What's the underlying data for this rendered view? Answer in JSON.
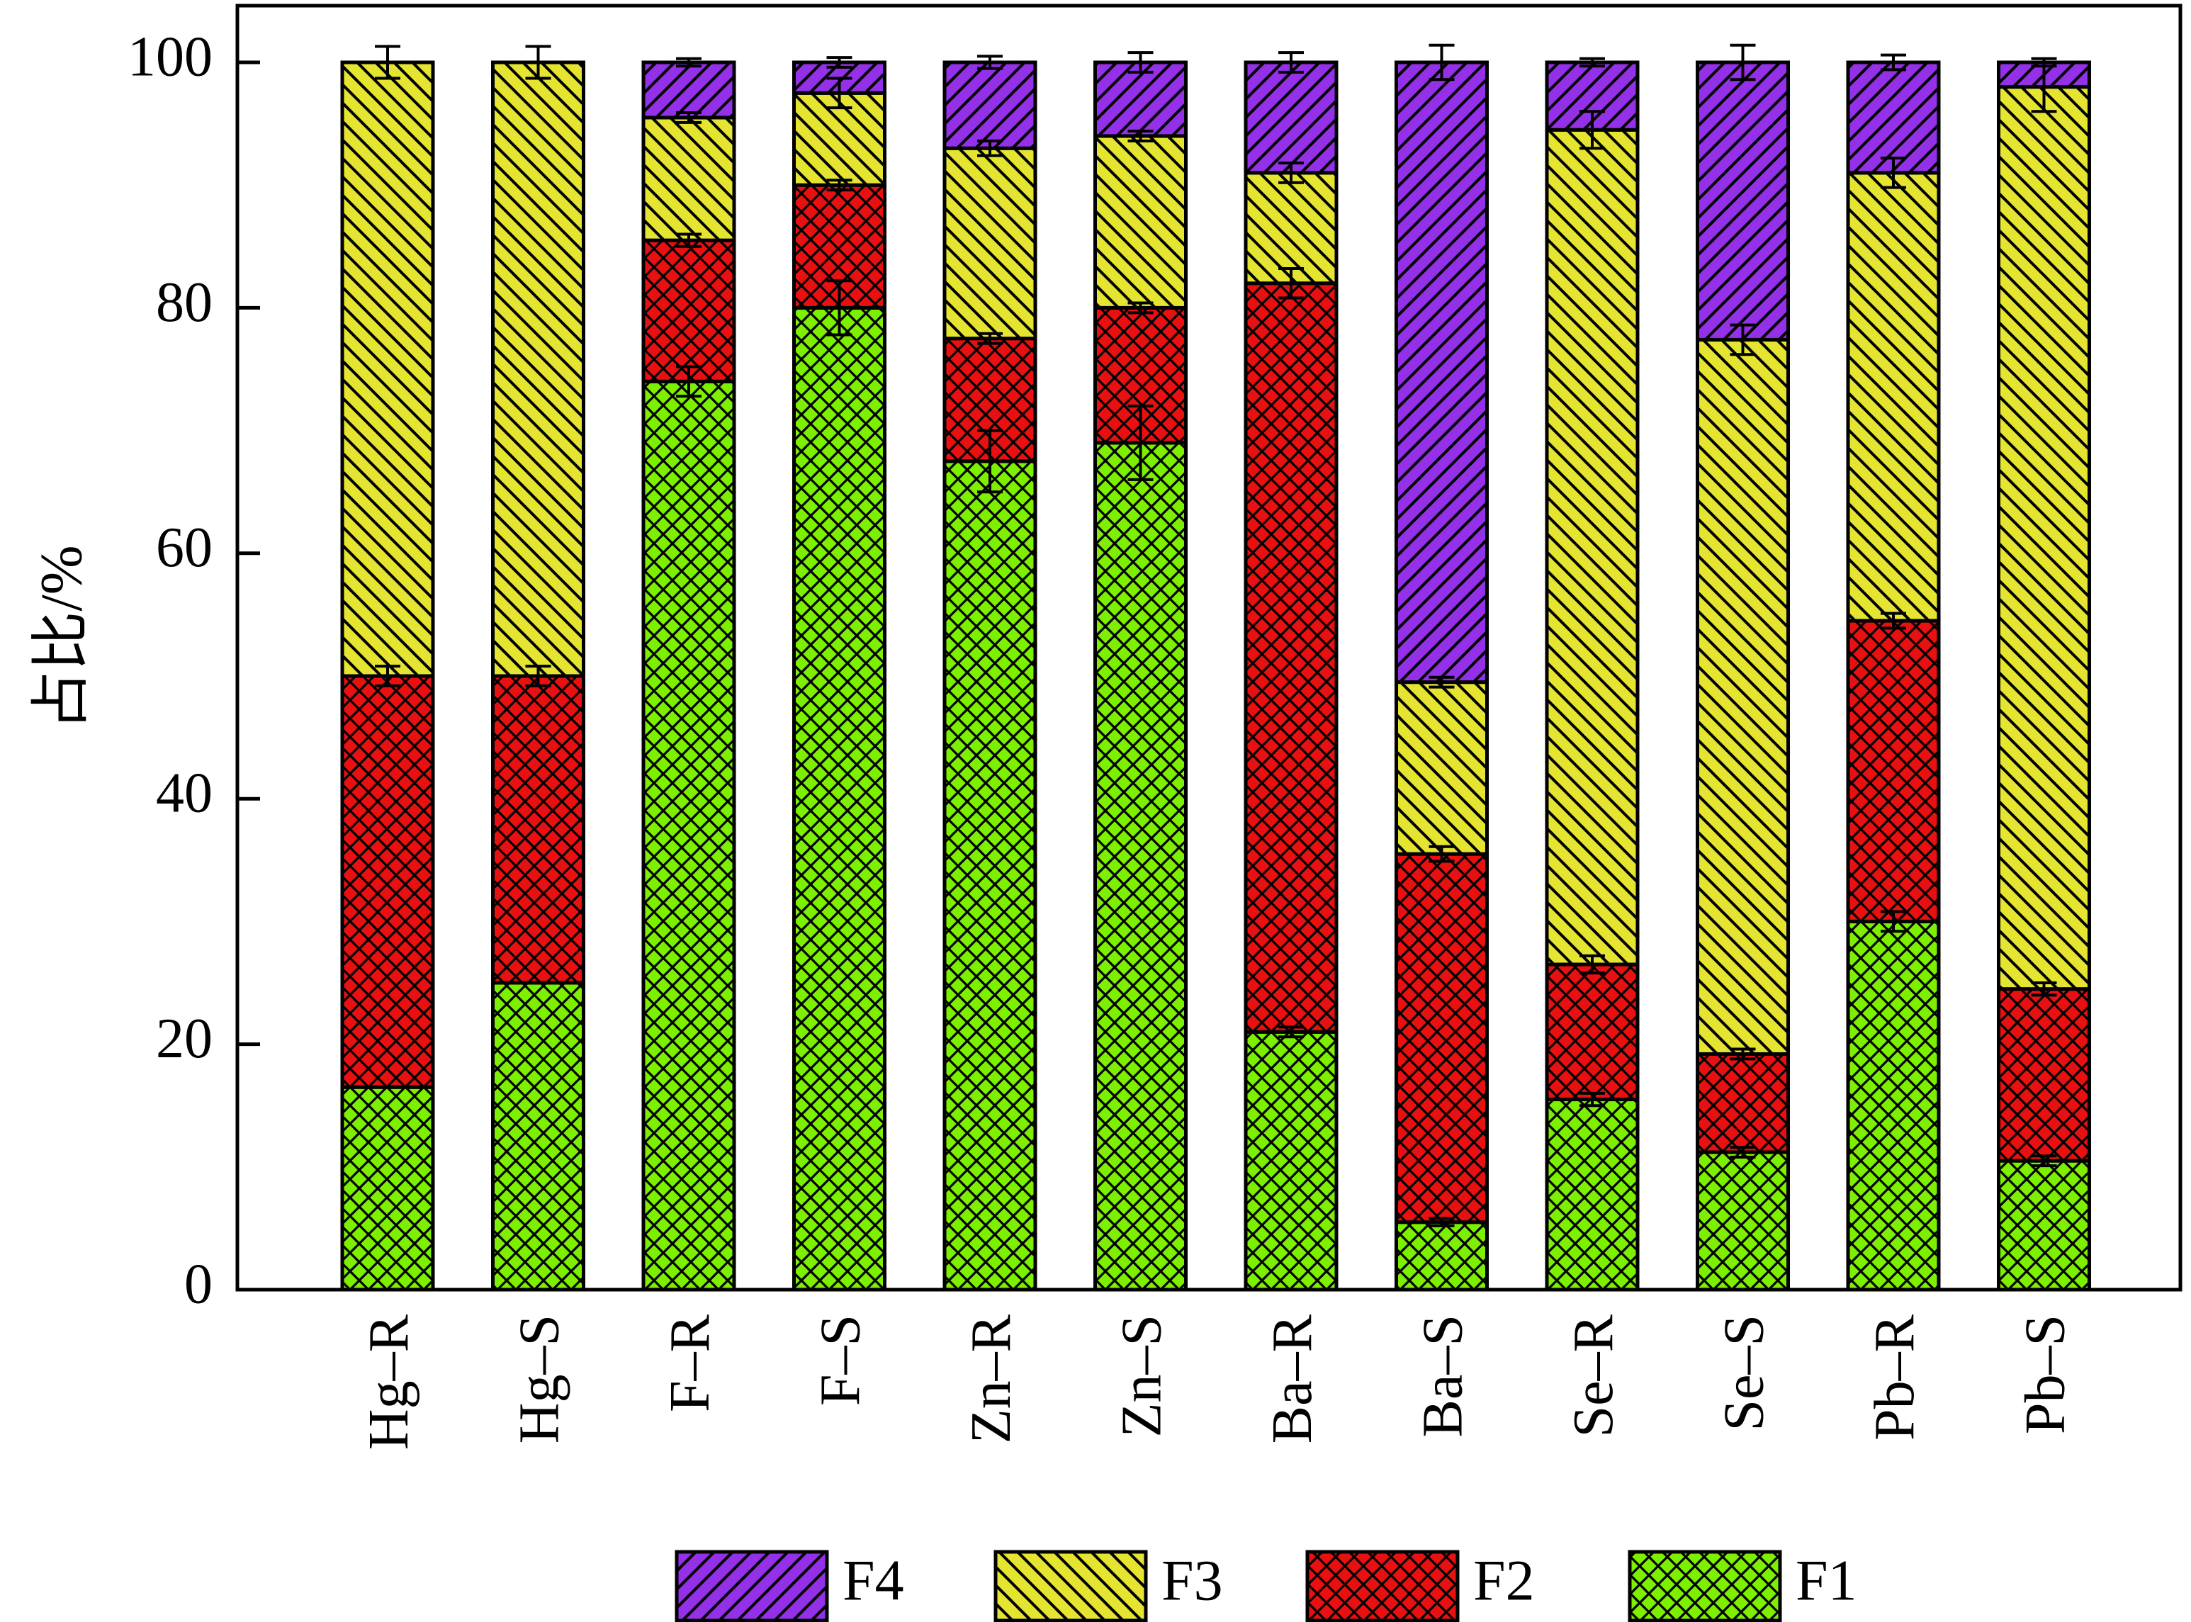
{
  "chart_data": {
    "type": "bar",
    "stacked": true,
    "title": "",
    "xlabel": "",
    "ylabel": "占比/%",
    "ylim": [
      0,
      100
    ],
    "yticks": [
      "0",
      "20",
      "40",
      "60",
      "80",
      "100"
    ],
    "grid": false,
    "legend_position": "bottom",
    "categories": [
      "Hg–R",
      "Hg–S",
      "F–R",
      "F–S",
      "Zn–R",
      "Zn–S",
      "Ba–R",
      "Ba–S",
      "Se–R",
      "Se–S",
      "Pb–R",
      "Pb–S"
    ],
    "series": [
      {
        "name": "F1",
        "color": "#7cf000",
        "pattern": "crosshatch",
        "values": [
          16.5,
          25.0,
          74.0,
          80.0,
          67.5,
          69.0,
          21.0,
          5.5,
          15.5,
          11.2,
          30.0,
          10.5
        ],
        "errors": [
          0.0,
          0.0,
          1.2,
          2.2,
          2.5,
          3.0,
          0.4,
          0.3,
          0.5,
          0.4,
          0.8,
          0.4
        ]
      },
      {
        "name": "F2",
        "color": "#e81010",
        "pattern": "crosshatch",
        "values": [
          33.5,
          25.0,
          11.5,
          10.0,
          10.0,
          11.0,
          61.0,
          30.0,
          11.0,
          8.0,
          24.5,
          14.0
        ],
        "errors": [
          0.8,
          0.8,
          0.5,
          0.4,
          0.4,
          0.4,
          1.2,
          0.6,
          0.7,
          0.4,
          0.6,
          0.5
        ]
      },
      {
        "name": "F3",
        "color": "#e4e431",
        "pattern": "backslash",
        "values": [
          50.0,
          50.0,
          10.0,
          7.5,
          15.5,
          14.0,
          9.0,
          14.0,
          68.0,
          58.2,
          36.5,
          73.5
        ],
        "errors": [
          0.0,
          0.0,
          0.4,
          1.2,
          0.6,
          0.4,
          0.8,
          0.4,
          1.5,
          1.2,
          1.2,
          2.0
        ]
      },
      {
        "name": "F4",
        "color": "#9430e8",
        "pattern": "slash",
        "values": [
          0.0,
          0.0,
          4.5,
          2.5,
          7.0,
          6.0,
          9.0,
          50.5,
          5.5,
          22.6,
          9.0,
          2.0
        ],
        "errors": [
          1.3,
          1.3,
          0.3,
          0.4,
          0.5,
          0.8,
          0.8,
          1.4,
          0.3,
          1.4,
          0.6,
          0.3
        ]
      }
    ]
  }
}
